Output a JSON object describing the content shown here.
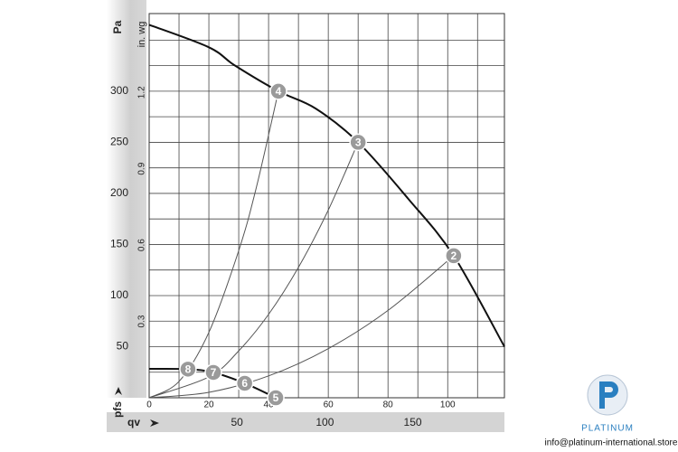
{
  "chart_data": {
    "type": "line",
    "x_label": "qv",
    "y_label": "Pa",
    "y2_label": "in. wg",
    "y_arrow_label": "pfs",
    "xlim": [
      0,
      119
    ],
    "xticks": [
      0,
      20,
      40,
      60,
      80,
      100
    ],
    "x2lim": [
      0,
      202.2
    ],
    "x2ticks": [
      50,
      100,
      150
    ],
    "ylim": [
      0,
      376
    ],
    "yticks": [
      50,
      100,
      150,
      200,
      250,
      300
    ],
    "y2lim": [
      0,
      1.51
    ],
    "y2ticks": [
      0.3,
      0.6,
      0.9,
      1.2
    ],
    "xgrid": [
      10,
      20,
      30,
      40,
      50,
      60,
      70,
      80,
      90,
      100,
      110
    ],
    "ygrid": [
      25,
      50,
      75,
      100,
      125,
      150,
      175,
      200,
      225,
      250,
      275,
      300,
      325,
      350
    ],
    "grid": true,
    "series": [
      {
        "color": "#111111",
        "width": 2,
        "x": [
          0,
          20,
          28.8,
          43.3,
          55.8,
          70,
          86.7,
          102,
          119
        ],
        "values": [
          365,
          343,
          325,
          300,
          283,
          250,
          195,
          139,
          50
        ]
      },
      {
        "color": "#111111",
        "width": 2,
        "x": [
          0,
          13,
          21.5,
          32,
          42.4
        ],
        "values": [
          28.3,
          28,
          24.8,
          14.2,
          0
        ]
      },
      {
        "color": "#555555",
        "width": 1,
        "x": [
          0,
          10,
          20,
          30,
          36,
          43.3
        ],
        "values": [
          0,
          16,
          64,
          144,
          207,
          300
        ]
      },
      {
        "color": "#555555",
        "width": 1,
        "x": [
          0,
          20,
          30,
          40,
          50,
          60,
          70
        ],
        "values": [
          0,
          20.4,
          45.9,
          81.6,
          127.6,
          183.7,
          250
        ]
      },
      {
        "color": "#555555",
        "width": 1,
        "x": [
          0,
          20,
          40,
          60,
          80,
          102
        ],
        "values": [
          0,
          5.3,
          21.4,
          48.1,
          85.5,
          139
        ]
      }
    ],
    "annotations": [
      {
        "text": "2",
        "x": 102,
        "y": 139
      },
      {
        "text": "3",
        "x": 70,
        "y": 250
      },
      {
        "text": "4",
        "x": 43.3,
        "y": 300
      },
      {
        "text": "5",
        "x": 42.4,
        "y": 0
      },
      {
        "text": "6",
        "x": 32,
        "y": 14.2
      },
      {
        "text": "7",
        "x": 21.5,
        "y": 24.8
      },
      {
        "text": "8",
        "x": 13,
        "y": 28
      }
    ]
  },
  "watermark": {
    "brand": "PLATINUM",
    "email": "info@platinum-international.store"
  }
}
